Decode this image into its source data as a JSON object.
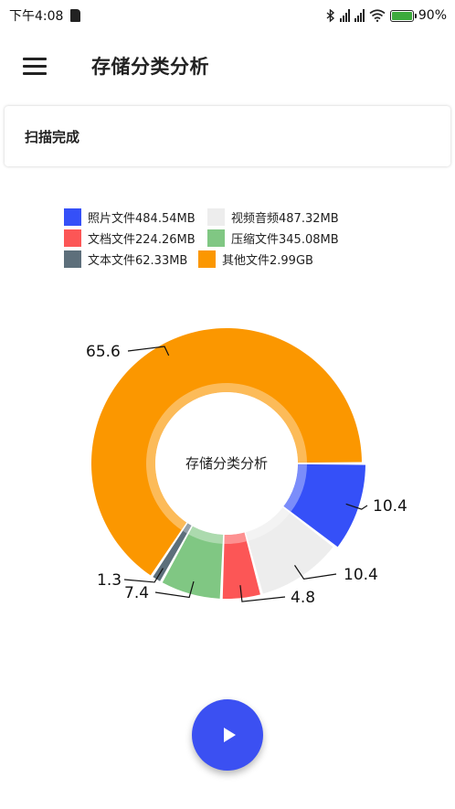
{
  "status_bar": {
    "time": "下午4:08",
    "battery": "90%",
    "icons": [
      "sd-card-icon",
      "bluetooth-icon",
      "signal-icon",
      "signal-icon",
      "wifi-icon",
      "battery-charging-icon"
    ]
  },
  "toolbar": {
    "menu_icon": "hamburger-icon",
    "title": "存储分类分析"
  },
  "scan_status": "扫描完成",
  "fab": {
    "icon": "play-icon",
    "color": "#3b50f2"
  },
  "chart_data": {
    "type": "pie",
    "variant": "donut",
    "center_text": "存储分类分析",
    "legend": [
      {
        "label": "照片文件484.54MB",
        "color": "#3550f8"
      },
      {
        "label": "视频音频487.32MB",
        "color": "#ededed"
      },
      {
        "label": "文档文件224.26MB",
        "color": "#fc5656"
      },
      {
        "label": "压缩文件345.08MB",
        "color": "#80c783"
      },
      {
        "label": "文本文件62.33MB",
        "color": "#5d6f7b"
      },
      {
        "label": "其他文件2.99GB",
        "color": "#fb9700"
      }
    ],
    "slices": [
      {
        "name": "照片文件",
        "value": 10.4,
        "label": "10.4",
        "color": "#3550f8"
      },
      {
        "name": "视频音频",
        "value": 10.4,
        "label": "10.4",
        "color": "#ededed"
      },
      {
        "name": "文档文件",
        "value": 4.8,
        "label": "4.8",
        "color": "#fc5656"
      },
      {
        "name": "压缩文件",
        "value": 7.4,
        "label": "7.4",
        "color": "#80c783"
      },
      {
        "name": "文本文件",
        "value": 1.3,
        "label": "1.3",
        "color": "#5d6f7b"
      },
      {
        "name": "其他文件",
        "value": 65.6,
        "label": "65.6",
        "color": "#fb9700"
      }
    ],
    "unit": "%",
    "highlighted_slice": "照片文件"
  }
}
